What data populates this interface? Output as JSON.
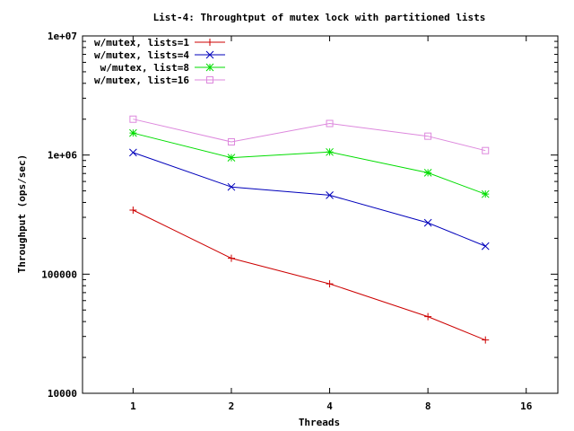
{
  "chart_data": {
    "type": "line",
    "title": "List-4: Throughtput of mutex lock with partitioned lists",
    "xlabel": "Threads",
    "ylabel": "Throughput (ops/sec)",
    "x_scale": "log2",
    "y_scale": "log10",
    "xlim": [
      0.7,
      20
    ],
    "ylim": [
      10000,
      10000000
    ],
    "x_ticks": [
      {
        "value": 1,
        "label": "1"
      },
      {
        "value": 2,
        "label": "2"
      },
      {
        "value": 4,
        "label": "4"
      },
      {
        "value": 8,
        "label": "8"
      },
      {
        "value": 16,
        "label": "16"
      }
    ],
    "y_ticks": [
      {
        "value": 10000,
        "label": "10000"
      },
      {
        "value": 100000,
        "label": "100000"
      },
      {
        "value": 1000000,
        "label": "1e+06"
      },
      {
        "value": 10000000,
        "label": "1e+07"
      }
    ],
    "legend_position": "top-left",
    "grid": false,
    "series": [
      {
        "name": "w/mutex, lists=1",
        "color": "#cc0000",
        "marker": "plus",
        "x": [
          1,
          2,
          4,
          8,
          12
        ],
        "values": [
          345000,
          136000,
          83000,
          44000,
          28000
        ]
      },
      {
        "name": "w/mutex, lists=4",
        "color": "#0000bb",
        "marker": "cross",
        "x": [
          1,
          2,
          4,
          8,
          12
        ],
        "values": [
          1050000,
          540000,
          460000,
          270000,
          172000
        ]
      },
      {
        "name": " w/mutex, list=8",
        "color": "#00dd00",
        "marker": "star",
        "x": [
          1,
          2,
          4,
          8,
          12
        ],
        "values": [
          1530000,
          950000,
          1060000,
          710000,
          470000
        ]
      },
      {
        "name": "w/mutex, list=16",
        "color": "#dd88dd",
        "marker": "square",
        "x": [
          1,
          2,
          4,
          8,
          12
        ],
        "values": [
          2000000,
          1290000,
          1840000,
          1440000,
          1090000
        ]
      }
    ]
  }
}
